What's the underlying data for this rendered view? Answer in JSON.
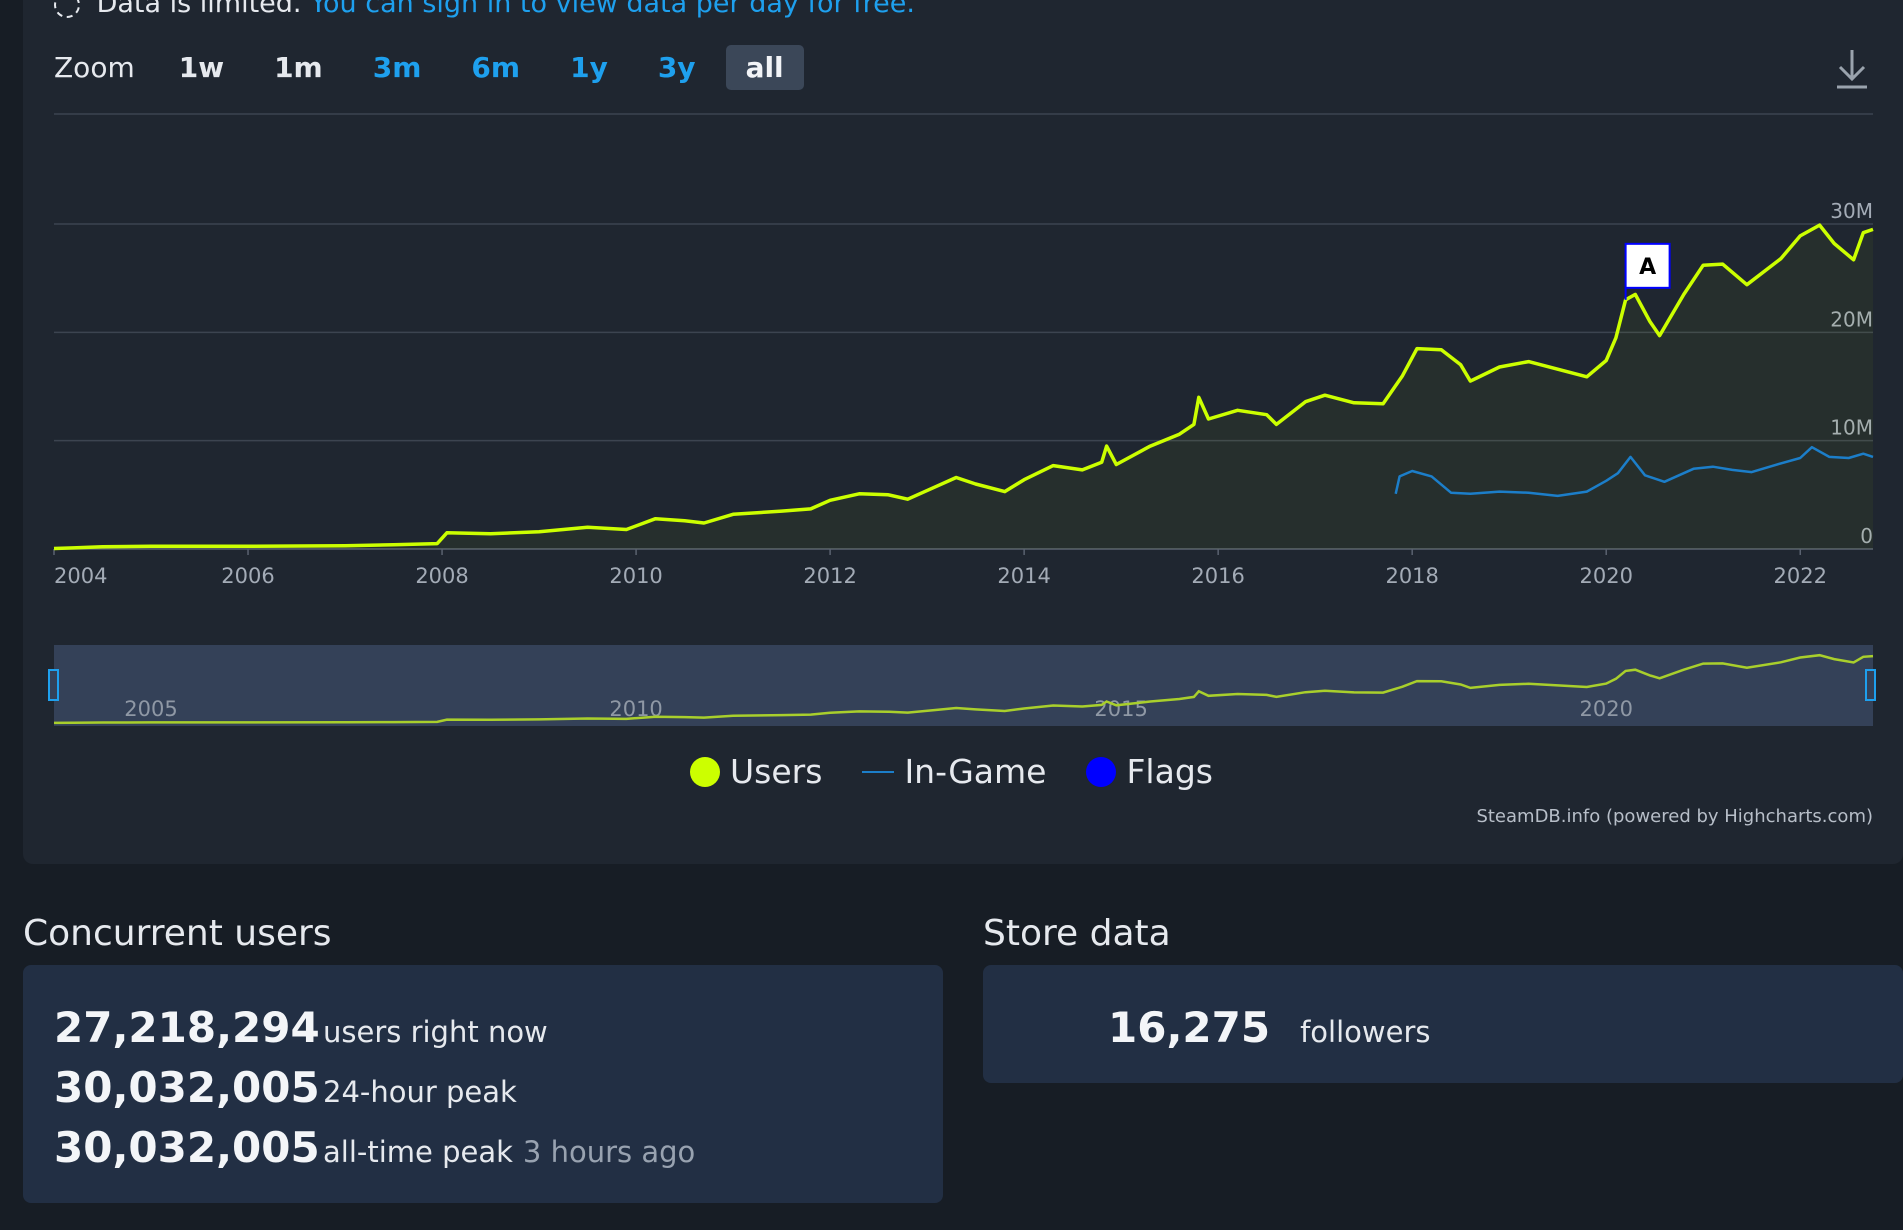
{
  "notice": {
    "text": "Data is limited.",
    "link": "You can sign in to view data per day for free."
  },
  "zoom": {
    "label": "Zoom",
    "options": [
      "1w",
      "1m",
      "3m",
      "6m",
      "1y",
      "3y",
      "all"
    ],
    "selected": "all"
  },
  "colors": {
    "users": "#ccff00",
    "in_game": "#1c7ec9",
    "flags": "#0000ff",
    "grid": "#3c4450",
    "navigator_bg": "#344158"
  },
  "chart_data": {
    "type": "line",
    "x_axis": {
      "min": 2004.0,
      "max": 2022.75,
      "ticks": [
        "2004",
        "2006",
        "2008",
        "2010",
        "2012",
        "2014",
        "2016",
        "2018",
        "2020",
        "2022"
      ]
    },
    "y_axis": {
      "min": 0,
      "max": 30000000,
      "ticks": [
        "0",
        "10M",
        "20M",
        "30M"
      ]
    },
    "grid": true,
    "legend_position": "bottom-center",
    "series": [
      {
        "name": "Users",
        "points": [
          [
            2004.0,
            50000
          ],
          [
            2004.2,
            100000
          ],
          [
            2004.5,
            200000
          ],
          [
            2005.0,
            250000
          ],
          [
            2005.5,
            250000
          ],
          [
            2006.0,
            250000
          ],
          [
            2007.0,
            300000
          ],
          [
            2007.5,
            400000
          ],
          [
            2007.95,
            500000
          ],
          [
            2008.05,
            1500000
          ],
          [
            2008.5,
            1400000
          ],
          [
            2009.0,
            1600000
          ],
          [
            2009.5,
            2000000
          ],
          [
            2009.9,
            1800000
          ],
          [
            2010.2,
            2800000
          ],
          [
            2010.5,
            2600000
          ],
          [
            2010.7,
            2400000
          ],
          [
            2011.0,
            3200000
          ],
          [
            2011.5,
            3500000
          ],
          [
            2011.8,
            3700000
          ],
          [
            2012.0,
            4500000
          ],
          [
            2012.3,
            5100000
          ],
          [
            2012.6,
            5000000
          ],
          [
            2012.8,
            4600000
          ],
          [
            2013.1,
            5800000
          ],
          [
            2013.3,
            6600000
          ],
          [
            2013.5,
            6000000
          ],
          [
            2013.8,
            5300000
          ],
          [
            2014.0,
            6400000
          ],
          [
            2014.3,
            7700000
          ],
          [
            2014.6,
            7300000
          ],
          [
            2014.8,
            8000000
          ],
          [
            2014.85,
            9500000
          ],
          [
            2014.95,
            7800000
          ],
          [
            2015.3,
            9500000
          ],
          [
            2015.6,
            10600000
          ],
          [
            2015.75,
            11500000
          ],
          [
            2015.8,
            14000000
          ],
          [
            2015.9,
            12000000
          ],
          [
            2016.2,
            12800000
          ],
          [
            2016.5,
            12400000
          ],
          [
            2016.6,
            11500000
          ],
          [
            2016.9,
            13600000
          ],
          [
            2017.1,
            14200000
          ],
          [
            2017.4,
            13500000
          ],
          [
            2017.7,
            13400000
          ],
          [
            2017.9,
            16000000
          ],
          [
            2018.05,
            18500000
          ],
          [
            2018.3,
            18400000
          ],
          [
            2018.5,
            17000000
          ],
          [
            2018.6,
            15500000
          ],
          [
            2018.9,
            16800000
          ],
          [
            2019.2,
            17300000
          ],
          [
            2019.5,
            16600000
          ],
          [
            2019.8,
            15900000
          ],
          [
            2020.0,
            17400000
          ],
          [
            2020.1,
            19500000
          ],
          [
            2020.2,
            23000000
          ],
          [
            2020.3,
            23500000
          ],
          [
            2020.45,
            21000000
          ],
          [
            2020.55,
            19700000
          ],
          [
            2020.8,
            23500000
          ],
          [
            2021.0,
            26200000
          ],
          [
            2021.2,
            26300000
          ],
          [
            2021.45,
            24400000
          ],
          [
            2021.8,
            26800000
          ],
          [
            2022.0,
            28900000
          ],
          [
            2022.2,
            29900000
          ],
          [
            2022.35,
            28200000
          ],
          [
            2022.55,
            26700000
          ],
          [
            2022.65,
            29200000
          ],
          [
            2022.75,
            29500000
          ]
        ]
      },
      {
        "name": "In-Game",
        "points": [
          [
            2017.83,
            5100000
          ],
          [
            2017.87,
            6700000
          ],
          [
            2018.0,
            7200000
          ],
          [
            2018.2,
            6700000
          ],
          [
            2018.4,
            5200000
          ],
          [
            2018.6,
            5100000
          ],
          [
            2018.9,
            5300000
          ],
          [
            2019.2,
            5200000
          ],
          [
            2019.5,
            4900000
          ],
          [
            2019.8,
            5300000
          ],
          [
            2020.0,
            6300000
          ],
          [
            2020.12,
            7000000
          ],
          [
            2020.25,
            8500000
          ],
          [
            2020.4,
            6800000
          ],
          [
            2020.6,
            6200000
          ],
          [
            2020.9,
            7400000
          ],
          [
            2021.1,
            7600000
          ],
          [
            2021.3,
            7300000
          ],
          [
            2021.5,
            7100000
          ],
          [
            2021.8,
            7900000
          ],
          [
            2022.0,
            8400000
          ],
          [
            2022.12,
            9400000
          ],
          [
            2022.3,
            8500000
          ],
          [
            2022.5,
            8400000
          ],
          [
            2022.65,
            8800000
          ],
          [
            2022.75,
            8500000
          ]
        ]
      }
    ],
    "flags": [
      {
        "label": "A",
        "x": 2020.2,
        "y": 23000000
      }
    ],
    "navigator": {
      "ticks": [
        "2005",
        "2010",
        "2015",
        "2020"
      ]
    }
  },
  "legend": {
    "users": "Users",
    "in_game": "In-Game",
    "flags": "Flags"
  },
  "credits": "SteamDB.info (powered by Highcharts.com)",
  "concurrent": {
    "title": "Concurrent users",
    "rows": [
      {
        "value": "27,218,294",
        "label": "users right now",
        "time": ""
      },
      {
        "value": "30,032,005",
        "label": "24-hour peak",
        "time": ""
      },
      {
        "value": "30,032,005",
        "label": "all-time peak",
        "time": "3 hours ago"
      }
    ]
  },
  "store": {
    "title": "Store data",
    "followers_value": "16,275",
    "followers_label": "followers"
  }
}
